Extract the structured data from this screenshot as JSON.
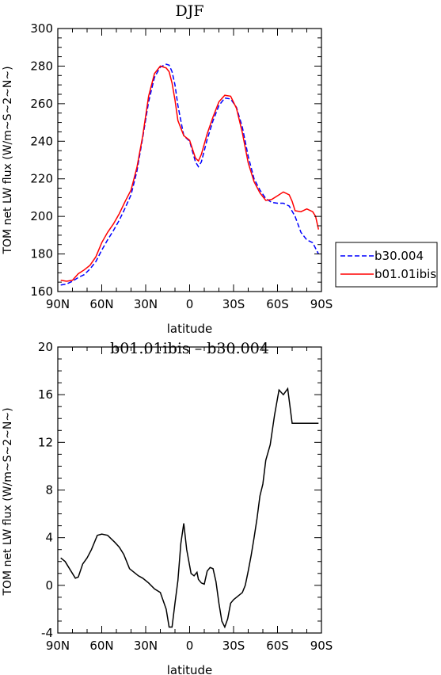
{
  "chart_data": [
    {
      "type": "line",
      "title": "DJF",
      "xlabel": "latitude",
      "ylabel": "TOM net LW flux (W/m~S~2~N~)",
      "xlim": [
        90,
        -90
      ],
      "ylim": [
        160,
        300
      ],
      "xticks": [
        {
          "value": 90,
          "label": "90N"
        },
        {
          "value": 60,
          "label": "60N"
        },
        {
          "value": 30,
          "label": "30N"
        },
        {
          "value": 0,
          "label": "0"
        },
        {
          "value": -30,
          "label": "30S"
        },
        {
          "value": -60,
          "label": "60S"
        },
        {
          "value": -90,
          "label": "90S"
        }
      ],
      "yticks": [
        160,
        180,
        200,
        220,
        240,
        260,
        280,
        300
      ],
      "legend_position": "right",
      "series": [
        {
          "name": "b30.004",
          "color": "#0000ff",
          "dash": "dashed",
          "x": [
            88,
            84,
            80,
            76,
            72,
            68,
            64,
            60,
            56,
            52,
            48,
            44,
            40,
            36,
            32,
            28,
            24,
            20,
            16,
            14,
            12,
            10,
            8,
            4,
            0,
            -4,
            -6,
            -8,
            -12,
            -16,
            -20,
            -24,
            -28,
            -32,
            -36,
            -40,
            -44,
            -48,
            -52,
            -56,
            -60,
            -64,
            -68,
            -72,
            -76,
            -80,
            -84,
            -88
          ],
          "y": [
            163.5,
            164,
            165.5,
            167.5,
            169,
            172,
            176,
            182,
            187.5,
            192.5,
            198,
            204.5,
            211.5,
            224,
            242,
            261,
            274,
            279.5,
            281,
            280.5,
            277,
            270,
            259,
            243,
            240,
            229,
            226.5,
            229,
            241,
            251,
            259,
            263,
            262.5,
            258,
            247.5,
            232,
            220,
            214,
            209.5,
            207.5,
            207,
            207,
            205.5,
            200,
            191.5,
            187.5,
            186,
            180
          ]
        },
        {
          "name": "b01.01ibis",
          "color": "#ff0000",
          "dash": "solid",
          "x": [
            88,
            84,
            80,
            76,
            72,
            68,
            64,
            60,
            56,
            52,
            48,
            44,
            40,
            36,
            32,
            28,
            24,
            20,
            16,
            14,
            12,
            10,
            8,
            4,
            0,
            -4,
            -6,
            -8,
            -12,
            -16,
            -20,
            -24,
            -28,
            -32,
            -36,
            -40,
            -44,
            -48,
            -52,
            -56,
            -60,
            -64,
            -68,
            -70,
            -72,
            -76,
            -80,
            -84,
            -86,
            -88
          ],
          "y": [
            166,
            165.5,
            166,
            169.5,
            171.5,
            174,
            178.5,
            186,
            191.5,
            196,
            201.5,
            208,
            214,
            226,
            243,
            264,
            276,
            280,
            279,
            277,
            271,
            262,
            251,
            243,
            240.5,
            231,
            229.5,
            233,
            244,
            253,
            261,
            264.5,
            264,
            257.5,
            244.5,
            228.5,
            218.5,
            212.5,
            208.5,
            209,
            211,
            213,
            211.5,
            208,
            203,
            202.5,
            204,
            202.5,
            200,
            193
          ]
        }
      ]
    },
    {
      "type": "line",
      "title": "b01.01ibis – b30.004",
      "xlabel": "latitude",
      "ylabel": "TOM net LW flux (W/m~S~2~N~)",
      "xlim": [
        90,
        -90
      ],
      "ylim": [
        -4,
        20
      ],
      "xticks": [
        {
          "value": 90,
          "label": "90N"
        },
        {
          "value": 60,
          "label": "60N"
        },
        {
          "value": 30,
          "label": "30N"
        },
        {
          "value": 0,
          "label": "0"
        },
        {
          "value": -30,
          "label": "30S"
        },
        {
          "value": -60,
          "label": "60S"
        },
        {
          "value": -90,
          "label": "90S"
        }
      ],
      "yticks": [
        -4,
        0,
        4,
        8,
        12,
        16,
        20
      ],
      "series": [
        {
          "color": "#000000",
          "dash": "solid",
          "x": [
            88,
            85,
            82,
            80,
            78,
            76,
            73,
            70,
            67,
            63,
            60,
            56,
            51,
            48,
            45,
            41,
            37,
            35,
            32,
            28,
            24,
            20,
            16,
            14,
            12,
            10,
            8,
            6,
            4,
            2,
            -1,
            -2,
            -3,
            -5,
            -6,
            -8,
            -10,
            -12,
            -14,
            -16,
            -18,
            -20,
            -22,
            -24,
            -26,
            -28,
            -30,
            -32,
            -34,
            -36,
            -38,
            -40,
            -42,
            -44,
            -46,
            -48,
            -50,
            -52,
            -55,
            -58,
            -61,
            -64,
            -67,
            -70,
            -73,
            -76,
            -79,
            -82,
            -84,
            -86,
            -88
          ],
          "y": [
            2.3,
            2.0,
            1.4,
            1.0,
            0.6,
            0.7,
            1.8,
            2.3,
            3.0,
            4.2,
            4.3,
            4.2,
            3.6,
            3.2,
            2.6,
            1.4,
            1.0,
            0.8,
            0.6,
            0.2,
            -0.3,
            -0.6,
            -2.0,
            -3.5,
            -3.5,
            -1.5,
            0.4,
            3.5,
            5.2,
            3.0,
            1.0,
            0.9,
            0.8,
            1.1,
            0.5,
            0.2,
            0.1,
            1.2,
            1.5,
            1.4,
            0.3,
            -1.5,
            -3.0,
            -3.5,
            -2.8,
            -1.5,
            -1.2,
            -1.0,
            -0.8,
            -0.6,
            0.0,
            1.2,
            2.5,
            4.0,
            5.6,
            7.5,
            8.5,
            10.5,
            11.8,
            14.3,
            16.4,
            16.0,
            16.5,
            13.6,
            13.6,
            13.6,
            13.6,
            13.6,
            13.6,
            13.6,
            13.6
          ]
        }
      ]
    }
  ]
}
